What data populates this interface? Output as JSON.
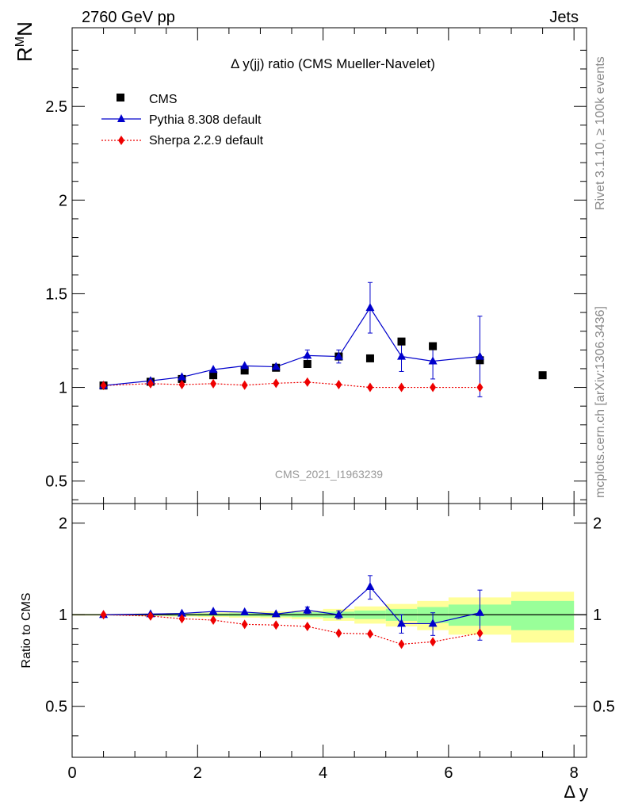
{
  "header": {
    "left": "2760 GeV pp",
    "right": "Jets"
  },
  "side_labels": {
    "rivet": "Rivet 3.1.10, ≥ 100k events",
    "mcplots": "mcplots.cern.ch [arXiv:1306.3436]"
  },
  "chart_data": {
    "type": "scatter",
    "title": "Δ y(jj) ratio (CMS Mueller-Navelet)",
    "watermark": "CMS_2021_I1963239",
    "ylabel_main": "R^M_N",
    "ylabel_ratio": "Ratio to CMS",
    "xlabel": "Δ y",
    "xlim": [
      0,
      8.2
    ],
    "ylim_main": [
      0.38,
      2.92
    ],
    "ylim_ratio": [
      0.34,
      2.32
    ],
    "xticks": [
      "0",
      "2",
      "4",
      "6",
      "8"
    ],
    "yticks_main": [
      "0.5",
      "1",
      "1.5",
      "2",
      "2.5"
    ],
    "yticks_ratio": [
      "0.5",
      "1",
      "2"
    ],
    "legend_position": "top-left",
    "colors": {
      "data": "#000000",
      "pythia": "#0000cc",
      "sherpa": "#ee0000",
      "band_inner": "#99ff99",
      "band_outer": "#ffff99"
    },
    "series": [
      {
        "name": "CMS",
        "x": [
          0.5,
          1.25,
          1.75,
          2.25,
          2.75,
          3.25,
          3.75,
          4.25,
          4.75,
          5.25,
          5.75,
          6.5,
          7.5
        ],
        "y": [
          1.01,
          1.03,
          1.045,
          1.065,
          1.09,
          1.105,
          1.125,
          1.165,
          1.155,
          1.245,
          1.22,
          1.145,
          1.065
        ],
        "yerr": [
          0.005,
          0.008,
          0.01,
          0.012,
          0.014,
          0.016,
          0.02,
          0.025,
          0.03,
          0.035,
          0.04,
          0.05,
          0.06
        ]
      },
      {
        "name": "Pythia 8.308 default",
        "x": [
          0.5,
          1.25,
          1.75,
          2.25,
          2.75,
          3.25,
          3.75,
          4.25,
          4.75,
          5.25,
          5.75,
          6.5
        ],
        "y": [
          1.01,
          1.035,
          1.055,
          1.095,
          1.115,
          1.11,
          1.17,
          1.165,
          1.425,
          1.165,
          1.14,
          1.165
        ],
        "yerr": [
          0.004,
          0.006,
          0.008,
          0.01,
          0.012,
          0.014,
          0.03,
          0.035,
          0.135,
          0.08,
          0.095,
          0.215
        ]
      },
      {
        "name": "Sherpa 2.2.9 default",
        "x": [
          0.5,
          1.25,
          1.75,
          2.25,
          2.75,
          3.25,
          3.75,
          4.25,
          4.75,
          5.25,
          5.75,
          6.5
        ],
        "y": [
          1.01,
          1.02,
          1.015,
          1.02,
          1.012,
          1.022,
          1.028,
          1.015,
          1.0,
          1.0,
          1.0,
          1.0
        ],
        "yerr": [
          0.003,
          0.004,
          0.005,
          0.006,
          0.006,
          0.007,
          0.008,
          0.008,
          0.008,
          0.009,
          0.01,
          0.01
        ]
      }
    ],
    "ratio_series": [
      {
        "name": "Pythia 8.308 default",
        "x": [
          0.5,
          1.25,
          1.75,
          2.25,
          2.75,
          3.25,
          3.75,
          4.25,
          4.75,
          5.25,
          5.75,
          6.5
        ],
        "y": [
          1.0,
          1.005,
          1.01,
          1.025,
          1.02,
          1.005,
          1.035,
          1.0,
          1.235,
          0.935,
          0.935,
          1.015
        ],
        "yerr": [
          0.004,
          0.006,
          0.008,
          0.01,
          0.012,
          0.014,
          0.025,
          0.03,
          0.11,
          0.065,
          0.08,
          0.19
        ]
      },
      {
        "name": "Sherpa 2.2.9 default",
        "x": [
          0.5,
          1.25,
          1.75,
          2.25,
          2.75,
          3.25,
          3.75,
          4.25,
          4.75,
          5.25,
          5.75,
          6.5
        ],
        "y": [
          1.0,
          0.99,
          0.97,
          0.96,
          0.93,
          0.925,
          0.915,
          0.87,
          0.865,
          0.8,
          0.815,
          0.87
        ],
        "yerr": [
          0.003,
          0.004,
          0.005,
          0.006,
          0.006,
          0.007,
          0.008,
          0.008,
          0.008,
          0.009,
          0.01,
          0.01
        ]
      }
    ],
    "ratio_bands": {
      "x_edges": [
        0,
        1,
        1.5,
        2,
        2.5,
        3,
        3.5,
        4,
        4.5,
        5,
        5.5,
        6,
        7,
        8
      ],
      "inner_halfwidth": [
        0.004,
        0.006,
        0.008,
        0.01,
        0.012,
        0.014,
        0.018,
        0.024,
        0.032,
        0.045,
        0.06,
        0.08,
        0.11
      ],
      "outer_halfwidth": [
        0.006,
        0.01,
        0.014,
        0.018,
        0.022,
        0.026,
        0.032,
        0.045,
        0.065,
        0.085,
        0.11,
        0.14,
        0.19
      ]
    }
  }
}
